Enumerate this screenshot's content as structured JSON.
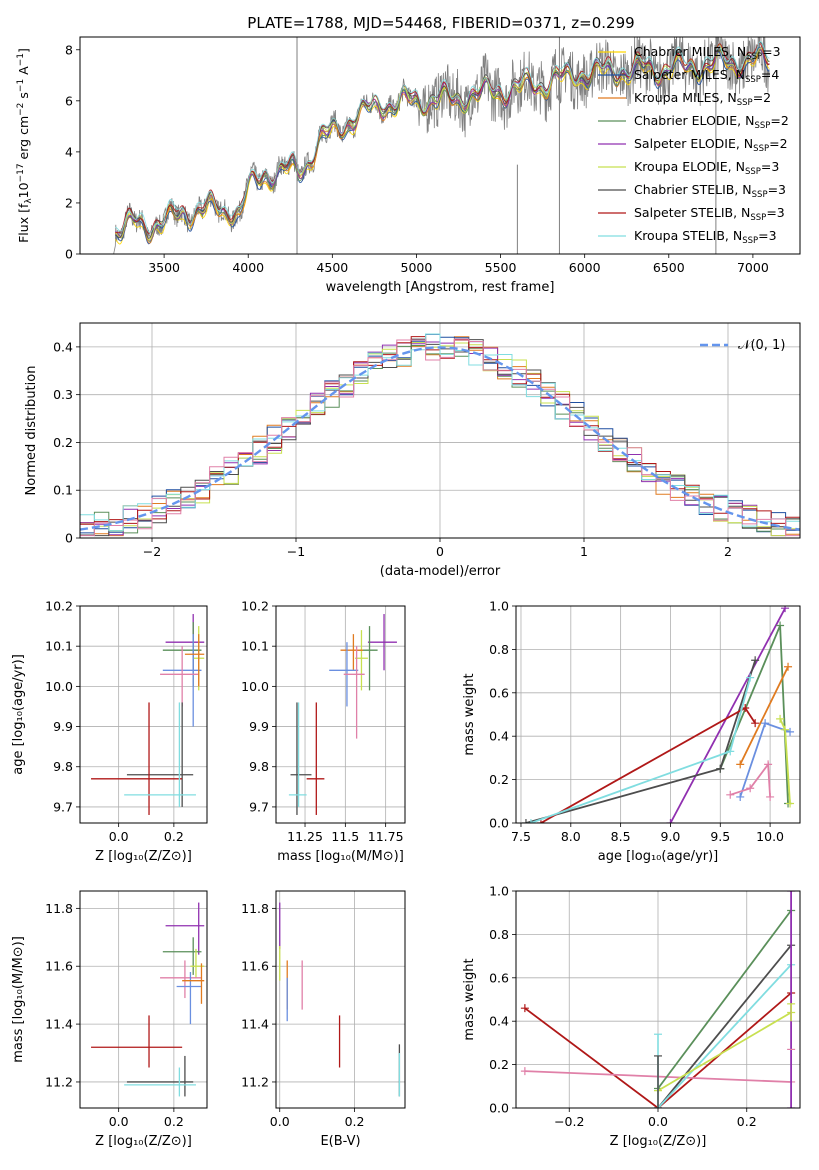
{
  "title": "PLATE=1788, MJD=54468, FIBERID=0371, z=0.299",
  "colors": {
    "Chabrier MILES": "#ffd700",
    "Salpeter MILES": "#1f4fa0",
    "Kroupa MILES": "#e07b20",
    "Chabrier ELODIE": "#5a8f5a",
    "Salpeter ELODIE": "#9030b0",
    "Kroupa ELODIE": "#c8e050",
    "Chabrier STELIB": "#4d4d4d",
    "Salpeter STELIB": "#b01818",
    "Kroupa STELIB": "#80dde0",
    "normal": "#6495ed",
    "pink": "#e080a8",
    "blue": "#6a8fe0",
    "data": "#808080"
  },
  "chart_data": [
    {
      "id": "spectrum",
      "type": "line",
      "xlabel": "wavelength [Angstrom, rest frame]",
      "ylabel_main": "Flux [f",
      "ylabel_sub1": "λ",
      "ylabel_mid": "10",
      "ylabel_sup1": "−17",
      "ylabel_mid2": " erg cm",
      "ylabel_sup2": "−2",
      "ylabel_mid3": " s",
      "ylabel_sup3": "−1",
      "ylabel_mid4": " A",
      "ylabel_sup4": "−1",
      "ylabel_end": "]",
      "xlim": [
        3000,
        7280
      ],
      "ylim": [
        0,
        8.5
      ],
      "xticks": [
        3500,
        4000,
        4500,
        5000,
        5500,
        6000,
        6500,
        7000
      ],
      "yticks": [
        0,
        2,
        4,
        6,
        8
      ],
      "legend": [
        {
          "name": "Chabrier MILES, N",
          "sub": "SSP",
          "tail": "=3",
          "color_key": "Chabrier MILES"
        },
        {
          "name": "Salpeter MILES, N",
          "sub": "SSP",
          "tail": "=4",
          "color_key": "Salpeter MILES"
        },
        {
          "name": "Kroupa MILES, N",
          "sub": "SSP",
          "tail": "=2",
          "color_key": "Kroupa MILES"
        },
        {
          "name": "Chabrier ELODIE, N",
          "sub": "SSP",
          "tail": "=2",
          "color_key": "Chabrier ELODIE"
        },
        {
          "name": "Salpeter ELODIE, N",
          "sub": "SSP",
          "tail": "=2",
          "color_key": "Salpeter ELODIE"
        },
        {
          "name": "Kroupa ELODIE, N",
          "sub": "SSP",
          "tail": "=3",
          "color_key": "Kroupa ELODIE"
        },
        {
          "name": "Chabrier STELIB, N",
          "sub": "SSP",
          "tail": "=3",
          "color_key": "Chabrier STELIB"
        },
        {
          "name": "Salpeter STELIB, N",
          "sub": "SSP",
          "tail": "=3",
          "color_key": "Salpeter STELIB"
        },
        {
          "name": "Kroupa STELIB, N",
          "sub": "SSP",
          "tail": "=3",
          "color_key": "Kroupa STELIB"
        }
      ],
      "continuum": [
        [
          3200,
          0
        ],
        [
          3210,
          0.9
        ],
        [
          3300,
          1.15
        ],
        [
          3400,
          1.1
        ],
        [
          3500,
          1.3
        ],
        [
          3600,
          1.5
        ],
        [
          3700,
          1.8
        ],
        [
          3800,
          1.7
        ],
        [
          3900,
          1.8
        ],
        [
          3950,
          1.5
        ],
        [
          4000,
          2.6
        ],
        [
          4100,
          3.1
        ],
        [
          4200,
          3.3
        ],
        [
          4300,
          3.2
        ],
        [
          4400,
          4.2
        ],
        [
          4500,
          4.8
        ],
        [
          4600,
          5.2
        ],
        [
          4700,
          5.6
        ],
        [
          4800,
          5.9
        ],
        [
          4900,
          5.9
        ],
        [
          5000,
          6.0
        ],
        [
          5100,
          6.1
        ],
        [
          5200,
          6.0
        ],
        [
          5300,
          6.2
        ],
        [
          5400,
          6.3
        ],
        [
          5500,
          6.4
        ],
        [
          5600,
          6.5
        ],
        [
          5700,
          6.6
        ],
        [
          5800,
          6.8
        ],
        [
          5900,
          6.9
        ],
        [
          6000,
          7.1
        ],
        [
          6100,
          7.1
        ],
        [
          6200,
          7.2
        ],
        [
          6300,
          7.2
        ],
        [
          6400,
          7.2
        ],
        [
          6500,
          7.3
        ],
        [
          6600,
          7.3
        ],
        [
          6700,
          7.4
        ],
        [
          6800,
          7.5
        ],
        [
          6900,
          7.5
        ],
        [
          7000,
          7.6
        ],
        [
          7100,
          7.6
        ]
      ],
      "data_range": [
        3200,
        7100
      ],
      "spikes": [
        [
          4290,
          8.5
        ],
        [
          6780,
          8.5
        ],
        [
          5600,
          3.5
        ],
        [
          5850,
          8.5
        ]
      ]
    },
    {
      "id": "residuals",
      "type": "step-histogram",
      "xlabel": "(data-model)/error",
      "ylabel": "Normed distribution",
      "xlim": [
        -2.5,
        2.5
      ],
      "ylim": [
        0,
        0.45
      ],
      "xticks": [
        -2,
        -1,
        0,
        1,
        2
      ],
      "xticklabels": [
        "−2",
        "−1",
        "0",
        "1",
        "2"
      ],
      "yticks": [
        0.0,
        0.1,
        0.2,
        0.3,
        0.4
      ],
      "legend": "𝒩(0, 1)",
      "bin_width": 0.1
    },
    {
      "id": "age_vs_Z",
      "type": "errorbar",
      "xlabel": "Z [log₁₀(Z/Z⊙)]",
      "ylabel": "age  [log₁₀(age/yr)]",
      "xlim": [
        -0.14,
        0.32
      ],
      "ylim": [
        9.66,
        10.2
      ],
      "xticks": [
        0.0,
        0.2
      ],
      "yticks": [
        9.7,
        9.8,
        9.9,
        10.0,
        10.1,
        10.2
      ],
      "points": [
        {
          "c": "Salpeter ELODIE",
          "x": 0.27,
          "y": 10.11,
          "xl": 0.17,
          "xh": 0.31,
          "yl": 10.04,
          "yh": 10.18
        },
        {
          "c": "Chabrier ELODIE",
          "x": 0.27,
          "y": 10.09,
          "xl": 0.16,
          "xh": 0.3,
          "yl": 10.0,
          "yh": 10.16
        },
        {
          "c": "Kroupa ELODIE",
          "x": 0.29,
          "y": 10.07,
          "xl": 0.27,
          "xh": 0.31,
          "yl": 9.99,
          "yh": 10.15
        },
        {
          "c": "blue",
          "x": 0.27,
          "y": 10.04,
          "xl": 0.16,
          "xh": 0.3,
          "yl": 9.9,
          "yh": 10.13
        },
        {
          "c": "pink",
          "x": 0.23,
          "y": 10.03,
          "xl": 0.15,
          "xh": 0.29,
          "yl": 9.95,
          "yh": 10.1
        },
        {
          "c": "Chabrier STELIB",
          "x": 0.23,
          "y": 9.78,
          "xl": 0.03,
          "xh": 0.27,
          "yl": 9.7,
          "yh": 9.96
        },
        {
          "c": "Salpeter STELIB",
          "x": 0.11,
          "y": 9.77,
          "xl": -0.1,
          "xh": 0.23,
          "yl": 9.68,
          "yh": 9.96
        },
        {
          "c": "Kroupa STELIB",
          "x": 0.22,
          "y": 9.73,
          "xl": 0.02,
          "xh": 0.28,
          "yl": 9.7,
          "yh": 9.96
        },
        {
          "c": "Kroupa MILES",
          "x": 0.29,
          "y": 10.08,
          "xl": 0.24,
          "xh": 0.31,
          "yl": 10.0,
          "yh": 10.13
        }
      ]
    },
    {
      "id": "age_vs_mass",
      "type": "errorbar",
      "xlabel": "mass [log₁₀(M/M⊙)]",
      "ylabel": "",
      "xlim": [
        11.07,
        11.87
      ],
      "ylim": [
        9.66,
        10.2
      ],
      "xticks": [
        11.25,
        11.5,
        11.75
      ],
      "yticks": [
        9.7,
        9.8,
        9.9,
        10.0,
        10.1,
        10.2
      ],
      "points": [
        {
          "c": "Salpeter ELODIE",
          "x": 11.74,
          "y": 10.11,
          "xl": 11.64,
          "xh": 11.82,
          "yl": 10.04,
          "yh": 10.18
        },
        {
          "c": "Chabrier ELODIE",
          "x": 11.65,
          "y": 10.09,
          "xl": 11.57,
          "xh": 11.7,
          "yl": 9.99,
          "yh": 10.15
        },
        {
          "c": "Kroupa ELODIE",
          "x": 11.6,
          "y": 10.07,
          "xl": 11.56,
          "xh": 11.64,
          "yl": 9.99,
          "yh": 10.14
        },
        {
          "c": "Kroupa MILES",
          "x": 11.55,
          "y": 10.09,
          "xl": 11.47,
          "xh": 11.61,
          "yl": 10.04,
          "yh": 10.13
        },
        {
          "c": "blue",
          "x": 11.51,
          "y": 10.04,
          "xl": 11.4,
          "xh": 11.58,
          "yl": 9.95,
          "yh": 10.11
        },
        {
          "c": "pink",
          "x": 11.57,
          "y": 10.03,
          "xl": 11.49,
          "xh": 11.62,
          "yl": 9.87,
          "yh": 10.1
        },
        {
          "c": "Chabrier STELIB",
          "x": 11.2,
          "y": 9.78,
          "xl": 11.16,
          "xh": 11.29,
          "yl": 9.68,
          "yh": 9.96
        },
        {
          "c": "Salpeter STELIB",
          "x": 11.32,
          "y": 9.77,
          "xl": 11.26,
          "xh": 11.37,
          "yl": 9.68,
          "yh": 9.96
        },
        {
          "c": "Kroupa STELIB",
          "x": 11.21,
          "y": 9.73,
          "xl": 11.15,
          "xh": 11.26,
          "yl": 9.7,
          "yh": 9.96
        }
      ]
    },
    {
      "id": "weight_vs_age",
      "type": "line",
      "xlabel": "age  [log₁₀(age/yr)]",
      "ylabel": "mass weight",
      "xlim": [
        7.45,
        10.3
      ],
      "ylim": [
        0,
        1
      ],
      "xticks": [
        7.5,
        8.0,
        8.5,
        9.0,
        9.5,
        10.0
      ],
      "yticks": [
        0.0,
        0.2,
        0.4,
        0.6,
        0.8,
        1.0
      ],
      "series": [
        {
          "c": "Salpeter ELODIE",
          "x": [
            9.0,
            10.15
          ],
          "y": [
            0.0,
            0.99
          ]
        },
        {
          "c": "Chabrier ELODIE",
          "x": [
            9.5,
            10.1,
            10.18
          ],
          "y": [
            0.25,
            0.91,
            0.09
          ]
        },
        {
          "c": "Chabrier STELIB",
          "x": [
            7.55,
            9.5,
            9.85
          ],
          "y": [
            0.0,
            0.25,
            0.75
          ]
        },
        {
          "c": "Kroupa MILES",
          "x": [
            9.7,
            10.18
          ],
          "y": [
            0.27,
            0.72
          ]
        },
        {
          "c": "Salpeter STELIB",
          "x": [
            7.7,
            9.75,
            9.85
          ],
          "y": [
            0.0,
            0.53,
            0.46
          ]
        },
        {
          "c": "Kroupa STELIB",
          "x": [
            7.6,
            9.6,
            9.8
          ],
          "y": [
            0.0,
            0.33,
            0.67
          ]
        },
        {
          "c": "blue",
          "x": [
            9.7,
            9.95,
            10.2
          ],
          "y": [
            0.12,
            0.46,
            0.42
          ]
        },
        {
          "c": "pink",
          "x": [
            9.6,
            9.8,
            9.98,
            10.0
          ],
          "y": [
            0.13,
            0.16,
            0.27,
            0.12
          ]
        },
        {
          "c": "Kroupa ELODIE",
          "x": [
            10.1,
            10.15,
            10.2
          ],
          "y": [
            0.48,
            0.43,
            0.09
          ]
        }
      ]
    },
    {
      "id": "mass_vs_Z",
      "type": "errorbar",
      "xlabel": "Z [log₁₀(Z/Z⊙)]",
      "ylabel": "mass [log₁₀(M/M⊙)]",
      "xlim": [
        -0.14,
        0.32
      ],
      "ylim": [
        11.11,
        11.86
      ],
      "xticks": [
        0.0,
        0.2
      ],
      "yticks": [
        11.2,
        11.4,
        11.6,
        11.8
      ],
      "points": [
        {
          "c": "Salpeter ELODIE",
          "x": 0.29,
          "y": 11.74,
          "xl": 0.17,
          "xh": 0.31,
          "yl": 11.64,
          "yh": 11.82
        },
        {
          "c": "Chabrier ELODIE",
          "x": 0.27,
          "y": 11.65,
          "xl": 0.16,
          "xh": 0.3,
          "yl": 11.57,
          "yh": 11.7
        },
        {
          "c": "Kroupa ELODIE",
          "x": 0.28,
          "y": 11.6,
          "xl": 0.26,
          "xh": 0.31,
          "yl": 11.56,
          "yh": 11.66
        },
        {
          "c": "pink",
          "x": 0.24,
          "y": 11.56,
          "xl": 0.15,
          "xh": 0.3,
          "yl": 11.49,
          "yh": 11.62
        },
        {
          "c": "blue",
          "x": 0.26,
          "y": 11.53,
          "xl": 0.21,
          "xh": 0.3,
          "yl": 11.4,
          "yh": 11.58
        },
        {
          "c": "Kroupa MILES",
          "x": 0.3,
          "y": 11.55,
          "xl": 0.23,
          "xh": 0.31,
          "yl": 11.47,
          "yh": 11.61
        },
        {
          "c": "Salpeter STELIB",
          "x": 0.11,
          "y": 11.32,
          "xl": -0.1,
          "xh": 0.23,
          "yl": 11.25,
          "yh": 11.43
        },
        {
          "c": "Chabrier STELIB",
          "x": 0.24,
          "y": 11.2,
          "xl": 0.03,
          "xh": 0.27,
          "yl": 11.15,
          "yh": 11.29
        },
        {
          "c": "Kroupa STELIB",
          "x": 0.22,
          "y": 11.19,
          "xl": 0.02,
          "xh": 0.28,
          "yl": 11.15,
          "yh": 11.25
        }
      ]
    },
    {
      "id": "mass_vs_ebv",
      "type": "errorbar",
      "xlabel": "E(B-V)",
      "ylabel": "",
      "xlim": [
        -0.01,
        0.335
      ],
      "ylim": [
        11.11,
        11.86
      ],
      "xticks": [
        0.0,
        0.2
      ],
      "yticks": [
        11.2,
        11.4,
        11.6,
        11.8
      ],
      "points": [
        {
          "c": "Salpeter ELODIE",
          "x": 0.0,
          "y": 11.74,
          "yl": 11.66,
          "yh": 11.82
        },
        {
          "c": "Kroupa ELODIE",
          "x": 0.0,
          "y": 11.6,
          "yl": 11.55,
          "yh": 11.67
        },
        {
          "c": "Kroupa MILES",
          "x": 0.02,
          "y": 11.52,
          "yl": 11.45,
          "yh": 11.62
        },
        {
          "c": "blue",
          "x": 0.02,
          "y": 11.48,
          "yl": 11.41,
          "yh": 11.56
        },
        {
          "c": "pink",
          "x": 0.06,
          "y": 11.53,
          "yl": 11.45,
          "yh": 11.62
        },
        {
          "c": "Salpeter STELIB",
          "x": 0.16,
          "y": 11.34,
          "yl": 11.25,
          "yh": 11.43
        },
        {
          "c": "Chabrier STELIB",
          "x": 0.32,
          "y": 11.25,
          "yl": 11.15,
          "yh": 11.33
        },
        {
          "c": "Kroupa STELIB",
          "x": 0.32,
          "y": 11.22,
          "yl": 11.15,
          "yh": 11.3
        }
      ]
    },
    {
      "id": "weight_vs_Z",
      "type": "line",
      "xlabel": "Z [log₁₀(Z/Z⊙)]",
      "ylabel": "mass weight",
      "xlim": [
        -0.32,
        0.32
      ],
      "ylim": [
        0,
        1
      ],
      "xticks": [
        -0.2,
        0.0,
        0.2
      ],
      "xticklabels": [
        "−0.2",
        "0.0",
        "0.2"
      ],
      "yticks": [
        0.0,
        0.2,
        0.4,
        0.6,
        0.8,
        1.0
      ],
      "series": [
        {
          "c": "Salpeter STELIB",
          "x": [
            -0.3,
            0.0,
            0.3
          ],
          "y": [
            0.46,
            0.0,
            0.53
          ]
        },
        {
          "c": "pink",
          "x": [
            -0.3,
            0.3
          ],
          "y": [
            0.17,
            0.12
          ]
        },
        {
          "c": "Chabrier ELODIE",
          "x": [
            0.0,
            0.3
          ],
          "y": [
            0.09,
            0.91
          ]
        },
        {
          "c": "Chabrier STELIB",
          "x": [
            0.0,
            0.3
          ],
          "y": [
            0.0,
            0.75
          ]
        },
        {
          "c": "Kroupa STELIB",
          "x": [
            0.0,
            0.3
          ],
          "y": [
            0.0,
            0.66
          ]
        },
        {
          "c": "Kroupa ELODIE",
          "x": [
            0.0,
            0.3
          ],
          "y": [
            0.08,
            0.44
          ]
        },
        {
          "c": "Salpeter ELODIE",
          "x": [
            0.3,
            0.3
          ],
          "y": [
            0.0,
            1.0
          ]
        }
      ],
      "vmarks": [
        {
          "c": "Kroupa STELIB",
          "x": 0.0,
          "y": [
            0.0,
            0.34
          ]
        },
        {
          "c": "Chabrier STELIB",
          "x": 0.0,
          "y": [
            0.0,
            0.24
          ]
        },
        {
          "c": "Kroupa ELODIE",
          "x": 0.3,
          "y": [
            0.4,
            0.48
          ]
        },
        {
          "c": "pink",
          "x": 0.3,
          "y": [
            0.27,
            0.27
          ]
        }
      ]
    }
  ]
}
